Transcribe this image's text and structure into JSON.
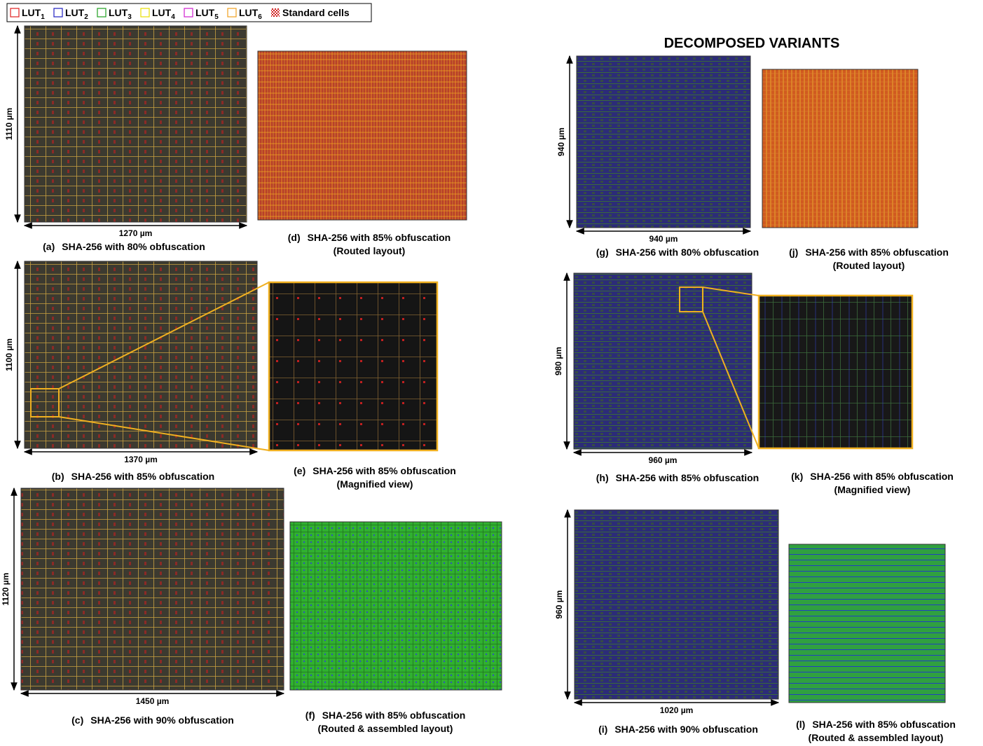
{
  "legend": {
    "items": [
      {
        "label": "LUT",
        "sub": "1",
        "color": "#e02020"
      },
      {
        "label": "LUT",
        "sub": "2",
        "color": "#2020c0"
      },
      {
        "label": "LUT",
        "sub": "3",
        "color": "#20a020"
      },
      {
        "label": "LUT",
        "sub": "4",
        "color": "#e8e000"
      },
      {
        "label": "LUT",
        "sub": "5",
        "color": "#d020d0"
      },
      {
        "label": "LUT",
        "sub": "6",
        "color": "#f0a020"
      }
    ],
    "standard": "Standard cells"
  },
  "title": "DECOMPOSED VARIANTS",
  "panels": [
    {
      "tag": "(a)",
      "caption": [
        "SHA-256 with 80% obfuscation"
      ],
      "width_label": "1270 µm",
      "height_label": "1110 µm"
    },
    {
      "tag": "(d)",
      "caption": [
        "SHA-256 with 85% obfuscation",
        "(Routed layout)"
      ]
    },
    {
      "tag": "(b)",
      "caption": [
        "SHA-256 with 85% obfuscation"
      ],
      "width_label": "1370 µm",
      "height_label": "1100 µm"
    },
    {
      "tag": "(e)",
      "caption": [
        "SHA-256 with 85% obfuscation",
        "(Magnified view)"
      ]
    },
    {
      "tag": "(c)",
      "caption": [
        "SHA-256 with 90% obfuscation"
      ],
      "width_label": "1450 µm",
      "height_label": "1120 µm"
    },
    {
      "tag": "(f)",
      "caption": [
        "SHA-256 with 85% obfuscation",
        "(Routed & assembled layout)"
      ]
    },
    {
      "tag": "(g)",
      "caption": [
        "SHA-256 with 80% obfuscation"
      ],
      "width_label": "940 µm",
      "height_label": "940 µm"
    },
    {
      "tag": "(j)",
      "caption": [
        "SHA-256 with 85% obfuscation",
        "(Routed layout)"
      ]
    },
    {
      "tag": "(h)",
      "caption": [
        "SHA-256 with 85% obfuscation"
      ],
      "width_label": "960 µm",
      "height_label": "980 µm"
    },
    {
      "tag": "(k)",
      "caption": [
        "SHA-256 with 85% obfuscation",
        "(Magnified view)"
      ]
    },
    {
      "tag": "(i)",
      "caption": [
        "SHA-256 with 90% obfuscation"
      ],
      "width_label": "1020 µm",
      "height_label": "960 µm"
    },
    {
      "tag": "(l)",
      "caption": [
        "SHA-256 with 85% obfuscation",
        "(Routed & assembled layout)"
      ]
    }
  ]
}
